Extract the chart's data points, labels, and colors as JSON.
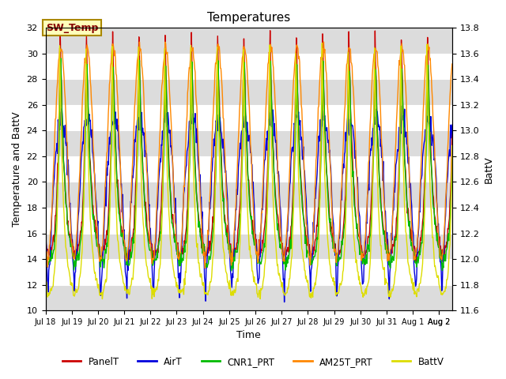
{
  "title": "Temperatures",
  "xlabel": "Time",
  "ylabel_left": "Temperature and BattV",
  "ylabel_right": "BattV",
  "ylim_left": [
    10,
    32
  ],
  "ylim_right": [
    11.6,
    13.8
  ],
  "yticks_left": [
    10,
    12,
    14,
    16,
    18,
    20,
    22,
    24,
    26,
    28,
    30,
    32
  ],
  "yticks_right": [
    11.6,
    11.8,
    12.0,
    12.2,
    12.4,
    12.6,
    12.8,
    13.0,
    13.2,
    13.4,
    13.6,
    13.8
  ],
  "series_colors": {
    "PanelT": "#cc0000",
    "AirT": "#0000dd",
    "CNR1_PRT": "#00bb00",
    "AM25T_PRT": "#ff8800",
    "BattV": "#dddd00"
  },
  "annotation_text": "SW_Temp",
  "annotation_color": "#880000",
  "annotation_bg": "#ffffbb",
  "annotation_border": "#aa8800",
  "background_color": "#ffffff",
  "plot_bg_light": "#ffffff",
  "plot_bg_dark": "#dcdcdc",
  "grid_color": "#c0c0c0"
}
